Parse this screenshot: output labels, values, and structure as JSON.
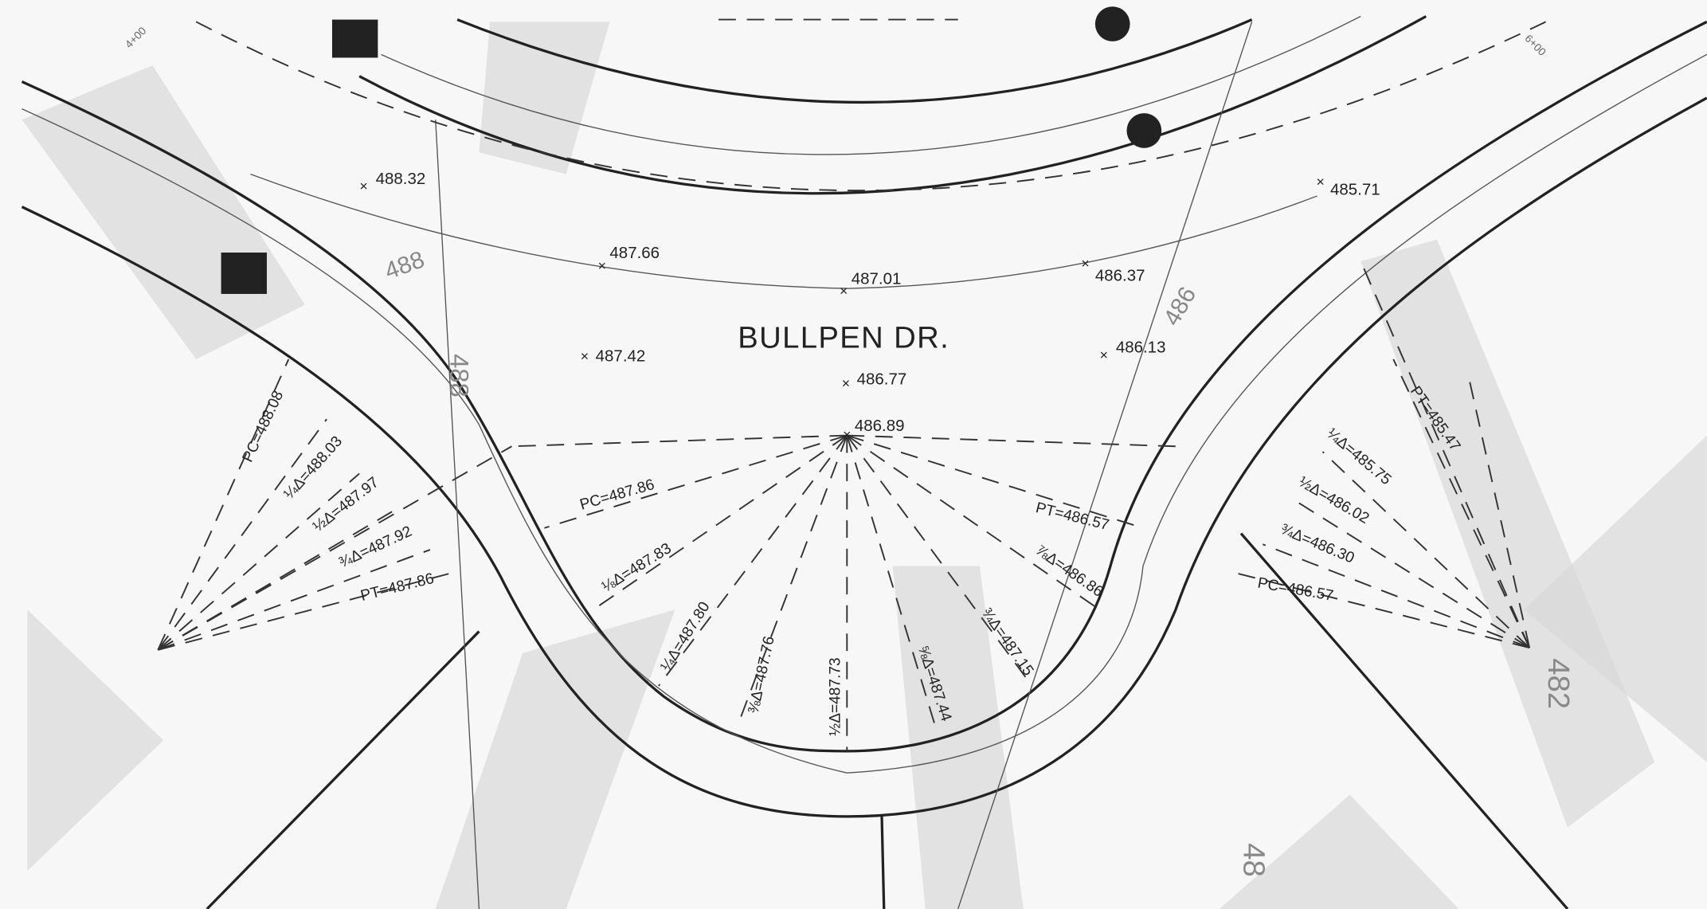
{
  "street_name": "BULLPEN DR.",
  "spot_elevations": [
    "488.32",
    "487.66",
    "487.01",
    "486.37",
    "485.71",
    "487.42",
    "486.77",
    "486.13",
    "486.89"
  ],
  "curve_labels": {
    "left": [
      "PC=488.08",
      "¼Δ=488.03",
      "½Δ=487.97",
      "¾Δ=487.92",
      "PT=487.86"
    ],
    "center": [
      "PC=487.86",
      "⅛Δ=487.83",
      "¼Δ=487.80",
      "⅜Δ=487.76",
      "½Δ=487.73",
      "⅝Δ=487.44",
      "¾Δ=487.15",
      "⅞Δ=486.86",
      "PT=486.57"
    ],
    "right": [
      "PT=485.47",
      "¼Δ=485.75",
      "½Δ=486.02",
      "¾Δ=486.30",
      "PC=486.57"
    ]
  },
  "contour_labels": [
    "488",
    "486",
    "488",
    "482",
    "48"
  ],
  "station_labels": [
    "4+00",
    "6+00"
  ]
}
